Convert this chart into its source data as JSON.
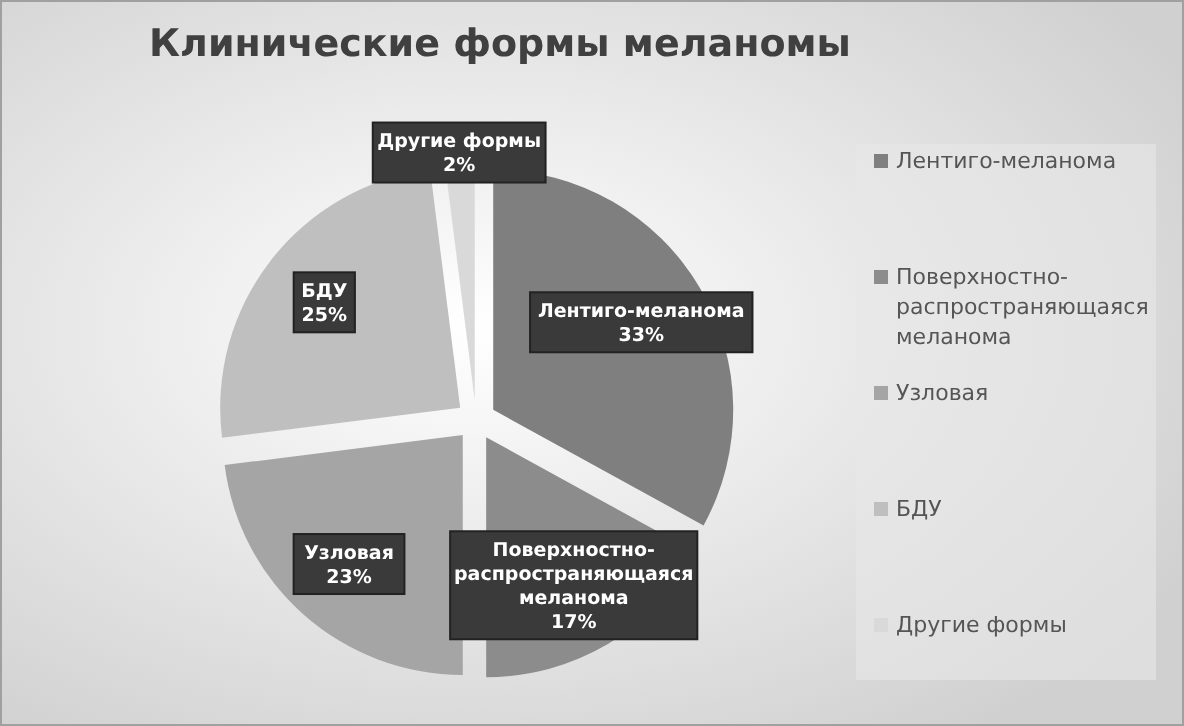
{
  "chart_data": {
    "type": "pie",
    "title": "Клинические формы меланомы",
    "categories": [
      "Лентиго-меланома",
      "Поверхностно-распространяющаяся меланома",
      "Узловая",
      "БДУ",
      "Другие формы"
    ],
    "values": [
      33,
      17,
      23,
      25,
      2
    ],
    "colors": [
      "#7f7f7f",
      "#8c8c8c",
      "#a5a5a5",
      "#bfbfbf",
      "#d9d9d9"
    ],
    "value_labels": [
      "33%",
      "17%",
      "23%",
      "25%",
      "2%"
    ],
    "legend": "right"
  }
}
